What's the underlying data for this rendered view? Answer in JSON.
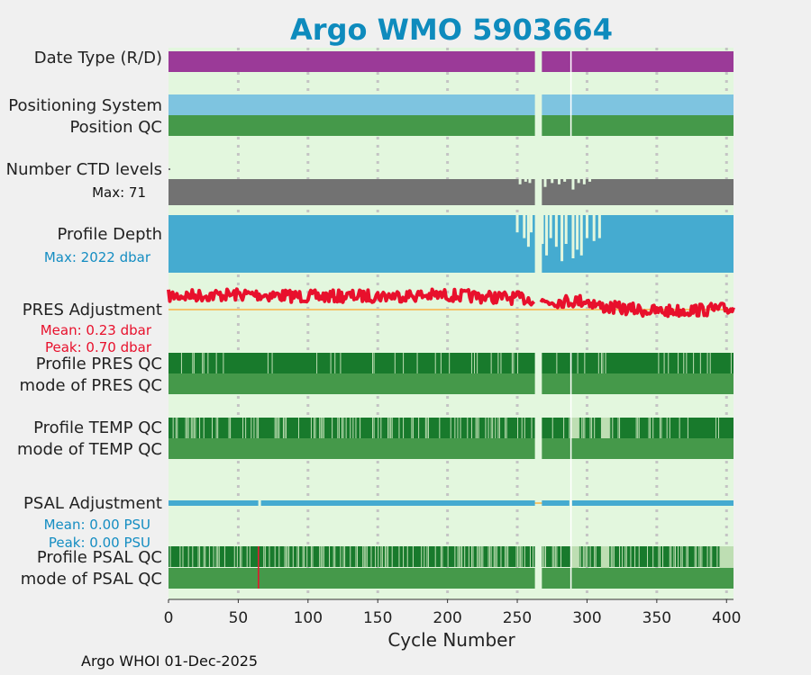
{
  "title": "Argo WMO 5903664",
  "footer": "Argo WHOI 01-Dec-2025",
  "colors": {
    "title": "#0e8bbd",
    "plot_bg": "#e3f7de",
    "date_type": "#9b3a98",
    "positioning": "#7ec4e0",
    "qc_good": "#45994a",
    "qc_dark": "#187a2c",
    "qc_light": "#bedeb3",
    "ctd_levels": "#727272",
    "profile_depth": "#45abd0",
    "pres_line": "#e8102c",
    "zero_line": "#f4c46c",
    "psal_line": "#45abd0",
    "red_accent": "#e8102c",
    "blue_accent": "#148dc2"
  },
  "rows": {
    "date_type": "Date Type (R/D)",
    "positioning_system": "Positioning System",
    "position_qc": "Position QC",
    "ctd_levels": "Number CTD levels",
    "ctd_max": "Max: 71",
    "profile_depth": "Profile Depth",
    "depth_max": "Max: 2022 dbar",
    "pres_adjustment": "PRES Adjustment",
    "pres_mean": "Mean: 0.23 dbar",
    "pres_peak": "Peak: 0.70 dbar",
    "profile_pres_qc": "Profile PRES QC",
    "mode_pres_qc": "mode of PRES QC",
    "profile_temp_qc": "Profile TEMP QC",
    "mode_temp_qc": "mode of TEMP QC",
    "psal_adjustment": "PSAL Adjustment",
    "psal_mean": "Mean: 0.00 PSU",
    "psal_peak": "Peak: 0.00 PSU",
    "profile_psal_qc": "Profile PSAL QC",
    "mode_psal_qc": "mode of PSAL QC"
  },
  "chart_data": {
    "type": "bar",
    "xlabel": "Cycle Number",
    "xlim": [
      0,
      405
    ],
    "xticks": [
      0,
      50,
      100,
      150,
      200,
      250,
      300,
      350,
      400
    ],
    "grid": "vertical dotted",
    "data_gap_cycles": [
      262,
      267
    ],
    "marker_cycle": 288,
    "ctd_levels_max": 71,
    "profile_depth_max_dbar": 2022,
    "pres_adjustment_mean_dbar": 0.23,
    "pres_adjustment_peak_dbar": 0.7,
    "psal_adjustment_mean_psu": 0.0,
    "psal_adjustment_peak_psu": 0.0,
    "pres_adjustment_trend": [
      [
        0,
        0.38
      ],
      [
        60,
        0.42
      ],
      [
        100,
        0.36
      ],
      [
        150,
        0.38
      ],
      [
        200,
        0.4
      ],
      [
        260,
        0.3
      ],
      [
        268,
        0.22
      ],
      [
        300,
        0.25
      ],
      [
        310,
        0.08
      ],
      [
        350,
        -0.05
      ],
      [
        405,
        0.02
      ]
    ],
    "profile_depth_dips": [
      [
        250,
        0.7
      ],
      [
        255,
        0.6
      ],
      [
        258,
        0.45
      ],
      [
        260,
        0.7
      ],
      [
        268,
        0.5
      ],
      [
        271,
        0.3
      ],
      [
        274,
        0.6
      ],
      [
        278,
        0.45
      ],
      [
        282,
        0.2
      ],
      [
        285,
        0.5
      ],
      [
        290,
        0.25
      ],
      [
        293,
        0.4
      ],
      [
        296,
        0.3
      ],
      [
        300,
        0.6
      ],
      [
        305,
        0.55
      ],
      [
        309,
        0.6
      ]
    ],
    "ctd_dips": [
      [
        252,
        0.8
      ],
      [
        256,
        0.9
      ],
      [
        259,
        0.85
      ],
      [
        270,
        0.7
      ],
      [
        275,
        0.85
      ],
      [
        280,
        0.8
      ],
      [
        284,
        0.9
      ],
      [
        290,
        0.6
      ],
      [
        294,
        0.85
      ],
      [
        298,
        0.8
      ],
      [
        302,
        0.9
      ]
    ],
    "psal_qc_flag_cycle": 64
  }
}
